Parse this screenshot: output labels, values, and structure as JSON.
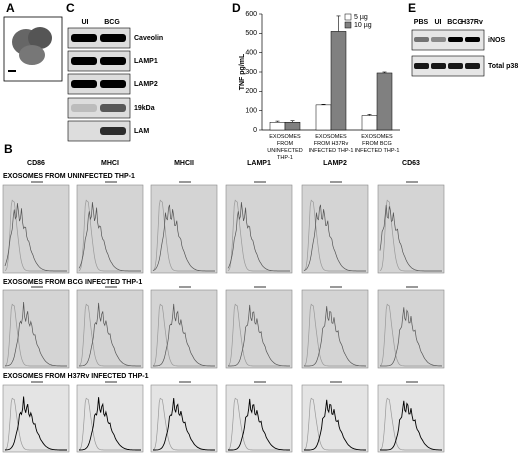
{
  "panels": {
    "a": {
      "label": "A"
    },
    "c": {
      "label": "C",
      "lanes": [
        "UI",
        "BCG"
      ],
      "bands": [
        "Caveolin",
        "LAMP1",
        "LAMP2",
        "19kDa",
        "LAM"
      ]
    },
    "d": {
      "label": "D"
    },
    "e": {
      "label": "E",
      "lanes": [
        "PBS",
        "UI",
        "BCG",
        "H37Rv"
      ],
      "bands": [
        "iNOS",
        "Total p38"
      ]
    },
    "b": {
      "label": "B",
      "columns": [
        "CD86",
        "MHCI",
        "MHCII",
        "LAMP1",
        "LAMP2",
        "CD63"
      ],
      "rows": [
        "EXOSOMES FROM UNINFECTED THP-1",
        "EXOSOMES FROM BCG INFECTED THP-1",
        "EXOSOMES FROM H37Rv INFECTED THP-1"
      ]
    }
  },
  "chart_data": {
    "type": "bar",
    "y_label": "TNF pg/mL",
    "categories": [
      "EXOSOMES FROM UNINFECTED THP-1",
      "EXOSOMES FROM H37Rv INFECTED THP-1",
      "EXOSOMES FROM BCG INFECTED THP-1"
    ],
    "series": [
      {
        "name": "5 µg",
        "color": "#ffffff",
        "values": [
          40,
          130,
          75
        ],
        "errors": [
          6,
          3,
          6
        ]
      },
      {
        "name": "10 µg",
        "color": "#808080",
        "values": [
          40,
          510,
          295
        ],
        "errors": [
          8,
          80,
          5
        ]
      }
    ],
    "ylim": [
      0,
      600
    ],
    "yticks": [
      0,
      100,
      200,
      300,
      400,
      500,
      600
    ],
    "legend": "top"
  }
}
